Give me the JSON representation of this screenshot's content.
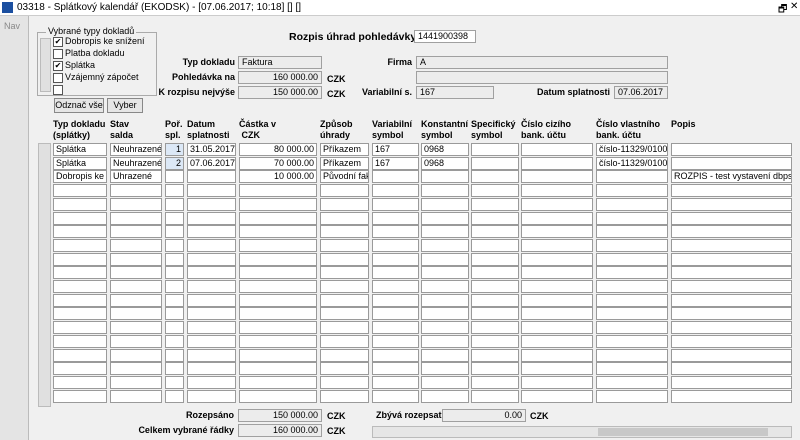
{
  "window": {
    "title": "03318 - Splátkový kalendář (EKODSK) - [07.06.2017; 10:18] [] []"
  },
  "sidebar": {
    "label": "Nav"
  },
  "filter": {
    "title": "Vybrané typy dokladů",
    "options": [
      {
        "label": "Dobropis ke snížení",
        "checked": true
      },
      {
        "label": "Platba dokladu",
        "checked": false
      },
      {
        "label": "Splátka",
        "checked": true
      },
      {
        "label": "Vzájemný zápočet",
        "checked": false
      },
      {
        "checked": false
      }
    ]
  },
  "buttons": [
    "Odznač vše",
    "Vyber"
  ],
  "header": {
    "title": "Rozpis úhrad pohledávky č.",
    "number": "1441900398"
  },
  "form": {
    "typ_dokladu": {
      "label": "Typ dokladu",
      "value": "Faktura"
    },
    "pohledavka": {
      "label": "Pohledávka na",
      "value": "160 000.00",
      "unit": "CZK"
    },
    "k_rozpisu": {
      "label": "K rozpisu nejvýše",
      "value": "150 000.00",
      "unit": "CZK"
    },
    "firma": {
      "label": "Firma",
      "value": "A"
    },
    "variabilni": {
      "label": "Variabilní s.",
      "value": "167"
    },
    "datum": {
      "label": "Datum splatnosti",
      "value": "07.06.2017"
    }
  },
  "table": {
    "columns": [
      "Typ dokladu\n(splátky)",
      "Stav\nsalda",
      "Poř.\nspl.",
      "Datum\nsplatnosti",
      "Částka v\n CZK",
      "Způsob\núhrady",
      "Variabilní\nsymbol",
      "Konstantní\nsymbol",
      "Specifický\nsymbol",
      "Číslo cizího\nbank. účtu",
      "Číslo vlastního\nbank. účtu",
      "Popis"
    ],
    "rows": [
      [
        "Splátka",
        "Neuhrazené",
        "1",
        "31.05.2017",
        "80 000.00",
        "Příkazem",
        "167",
        "0968",
        null,
        null,
        "číslo-11329/0100",
        null
      ],
      [
        "Splátka",
        "Neuhrazené",
        "2",
        "07.06.2017",
        "70 000.00",
        "Příkazem",
        "167",
        "0968",
        null,
        null,
        "číslo-11329/0100",
        null
      ],
      [
        "Dobropis ke sní",
        "Uhrazené",
        null,
        null,
        "10 000.00",
        "Původní faktur",
        null,
        null,
        null,
        null,
        null,
        "ROZPIS - test vystavení dbps se zn"
      ]
    ]
  },
  "footer": {
    "rozepsano": {
      "label": "Rozepsáno",
      "value": "150 000.00",
      "unit": "CZK"
    },
    "celkem": {
      "label": "Celkem vybrané řádky",
      "value": "160 000.00",
      "unit": "CZK"
    },
    "zbyva": {
      "label": "Zbývá rozepsat",
      "value": "0.00",
      "unit": "CZK"
    }
  }
}
